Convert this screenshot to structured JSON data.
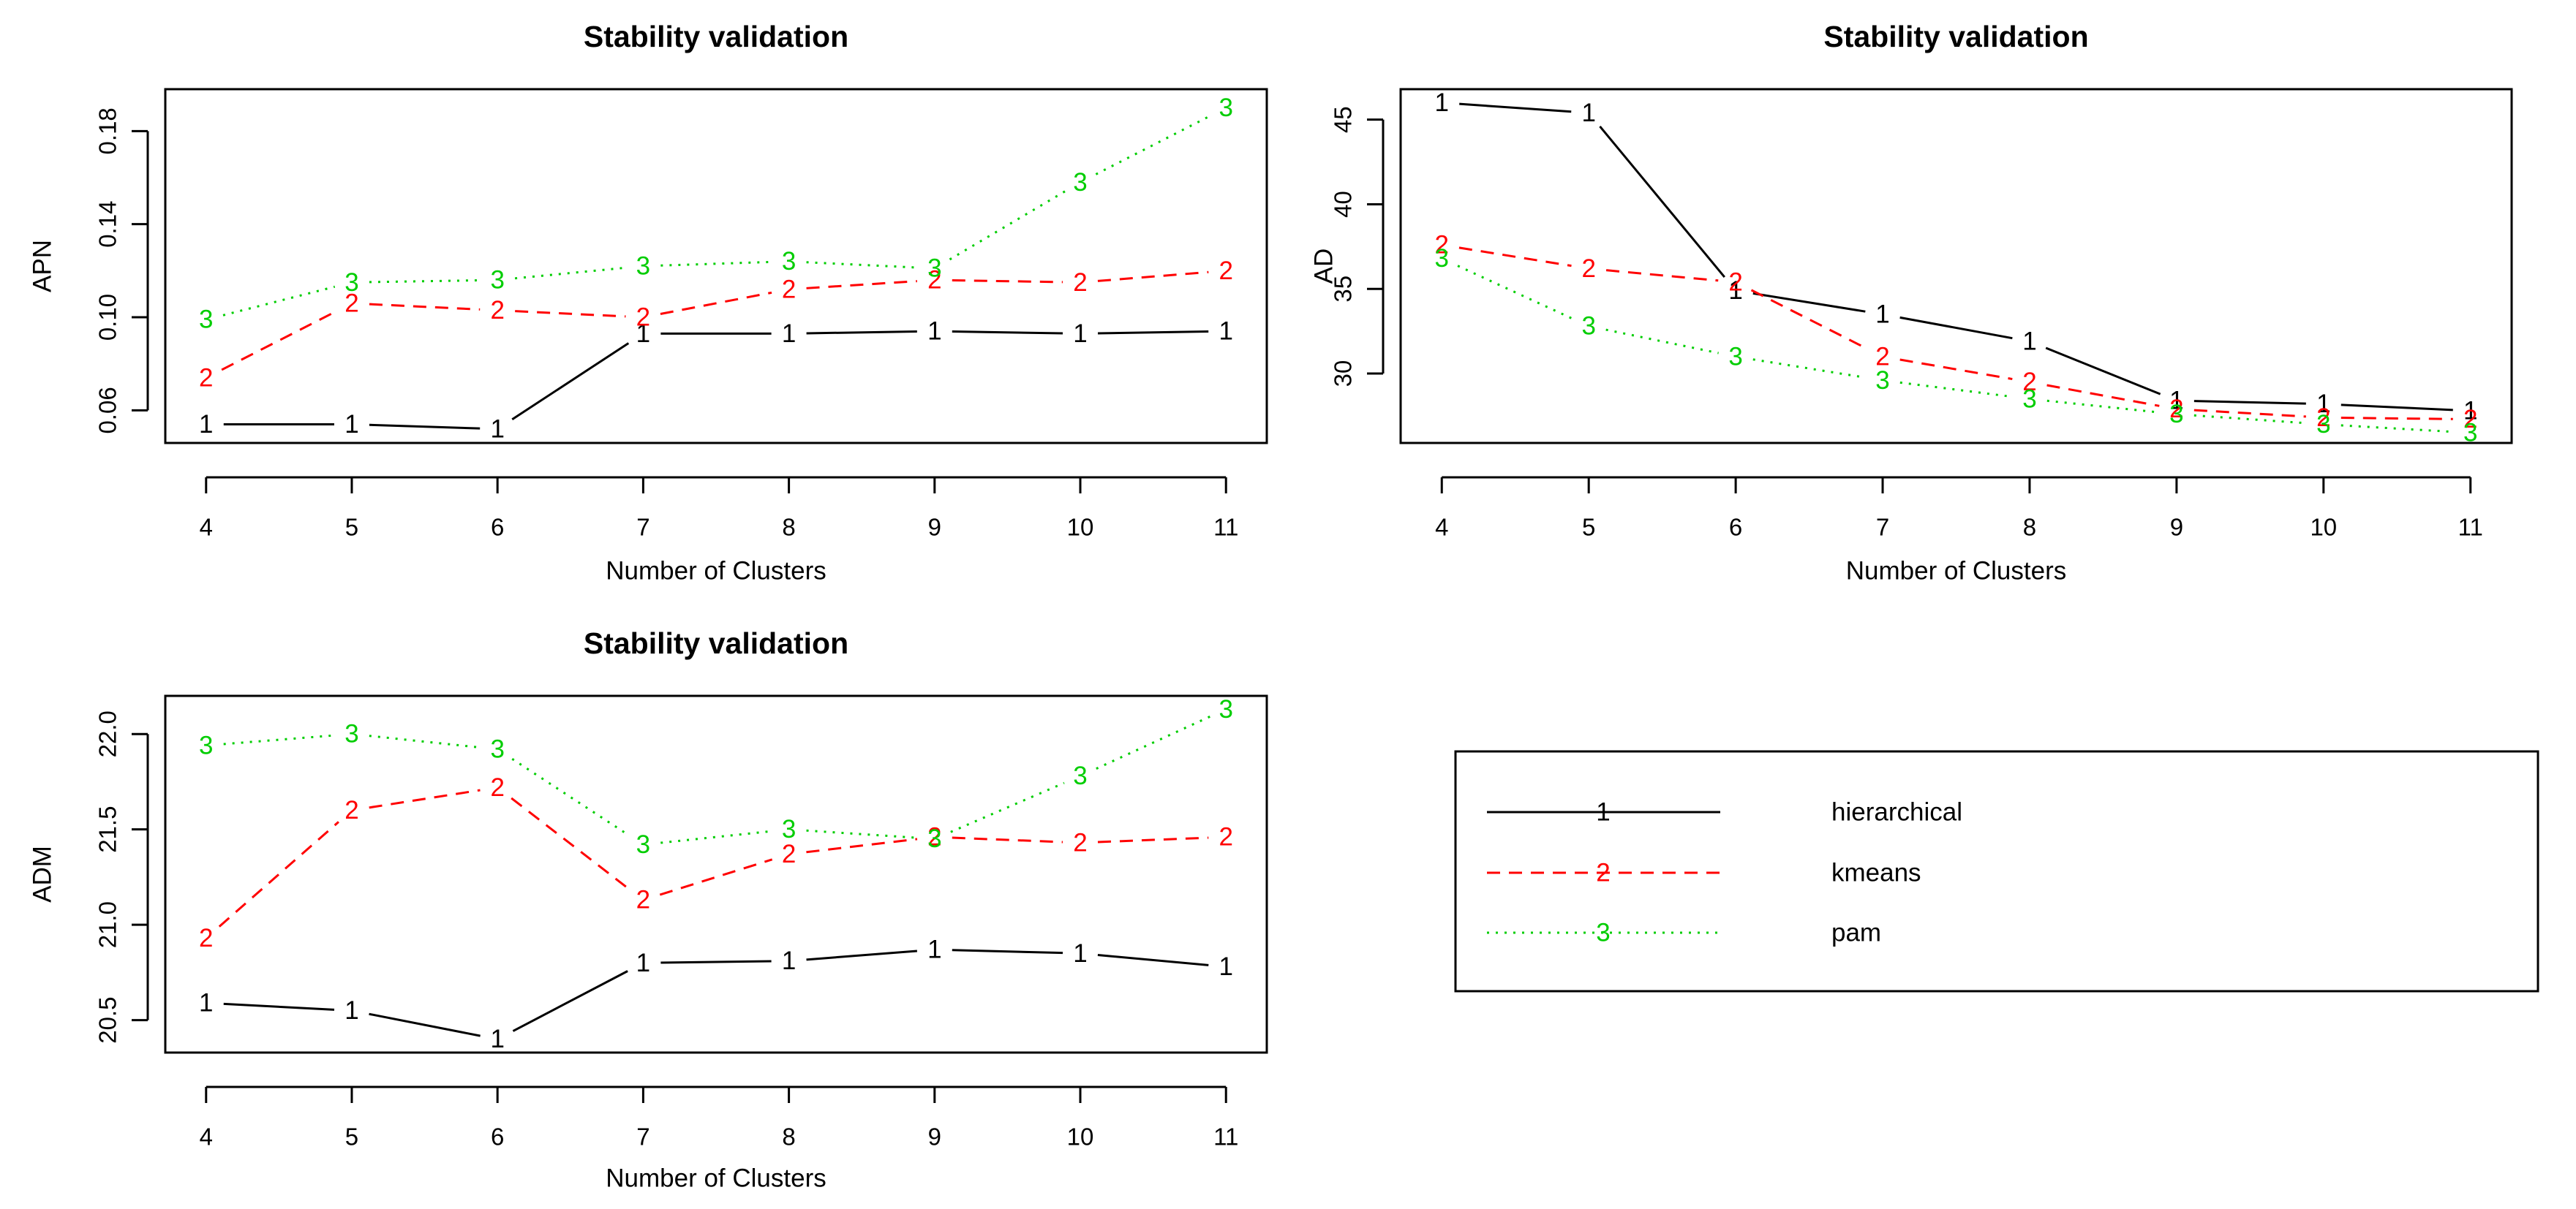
{
  "colors": {
    "hierarchical": "#000000",
    "kmeans": "#ff0000",
    "pam": "#00cd00",
    "frame": "#000000"
  },
  "legend": {
    "items": [
      {
        "name": "hierarchical",
        "symbol": "1",
        "style": "solid"
      },
      {
        "name": "kmeans",
        "symbol": "2",
        "style": "dashed"
      },
      {
        "name": "pam",
        "symbol": "3",
        "style": "dotted"
      }
    ]
  },
  "chart_data": [
    {
      "type": "line",
      "title": "Stability validation",
      "xlabel": "Number of Clusters",
      "ylabel": "APN",
      "x": [
        4,
        5,
        6,
        7,
        8,
        9,
        10,
        11
      ],
      "xticks": [
        "4",
        "5",
        "6",
        "7",
        "8",
        "9",
        "10",
        "11"
      ],
      "ylim": [
        0.046,
        0.198
      ],
      "yticks": [
        "0.06",
        "0.10",
        "0.14",
        "0.18"
      ],
      "series": [
        {
          "name": "hierarchical",
          "symbol": "1",
          "values": [
            0.054,
            0.054,
            0.052,
            0.093,
            0.093,
            0.094,
            0.093,
            0.094
          ]
        },
        {
          "name": "kmeans",
          "symbol": "2",
          "values": [
            0.074,
            0.106,
            0.103,
            0.1,
            0.112,
            0.116,
            0.115,
            0.12
          ]
        },
        {
          "name": "pam",
          "symbol": "3",
          "values": [
            0.099,
            0.115,
            0.116,
            0.122,
            0.124,
            0.121,
            0.158,
            0.19
          ]
        }
      ]
    },
    {
      "type": "line",
      "title": "Stability validation",
      "xlabel": "Number of Clusters",
      "ylabel": "AD",
      "x": [
        4,
        5,
        6,
        7,
        8,
        9,
        10,
        11
      ],
      "xticks": [
        "4",
        "5",
        "6",
        "7",
        "8",
        "9",
        "10",
        "11"
      ],
      "ylim": [
        25.9,
        46.8
      ],
      "yticks": [
        "30",
        "35",
        "40",
        "45"
      ],
      "series": [
        {
          "name": "hierarchical",
          "symbol": "1",
          "values": [
            46.0,
            45.4,
            34.9,
            33.5,
            31.9,
            28.4,
            28.2,
            27.8
          ]
        },
        {
          "name": "kmeans",
          "symbol": "2",
          "values": [
            37.6,
            36.2,
            35.4,
            31.0,
            29.5,
            27.9,
            27.4,
            27.3
          ]
        },
        {
          "name": "pam",
          "symbol": "3",
          "values": [
            36.8,
            32.8,
            31.0,
            29.6,
            28.5,
            27.6,
            27.0,
            26.5
          ]
        }
      ]
    },
    {
      "type": "line",
      "title": "Stability validation",
      "xlabel": "Number of Clusters",
      "ylabel": "ADM",
      "x": [
        4,
        5,
        6,
        7,
        8,
        9,
        10,
        11
      ],
      "xticks": [
        "4",
        "5",
        "6",
        "7",
        "8",
        "9",
        "10",
        "11"
      ],
      "ylim": [
        20.33,
        22.2
      ],
      "yticks": [
        "20.5",
        "21.0",
        "21.5",
        "22.0"
      ],
      "series": [
        {
          "name": "hierarchical",
          "symbol": "1",
          "values": [
            20.59,
            20.55,
            20.4,
            20.8,
            20.81,
            20.87,
            20.85,
            20.78
          ]
        },
        {
          "name": "kmeans",
          "symbol": "2",
          "values": [
            20.93,
            21.6,
            21.72,
            21.13,
            21.37,
            21.46,
            21.43,
            21.46
          ]
        },
        {
          "name": "pam",
          "symbol": "3",
          "values": [
            21.94,
            22.0,
            21.92,
            21.42,
            21.5,
            21.45,
            21.78,
            22.13
          ]
        }
      ]
    }
  ]
}
